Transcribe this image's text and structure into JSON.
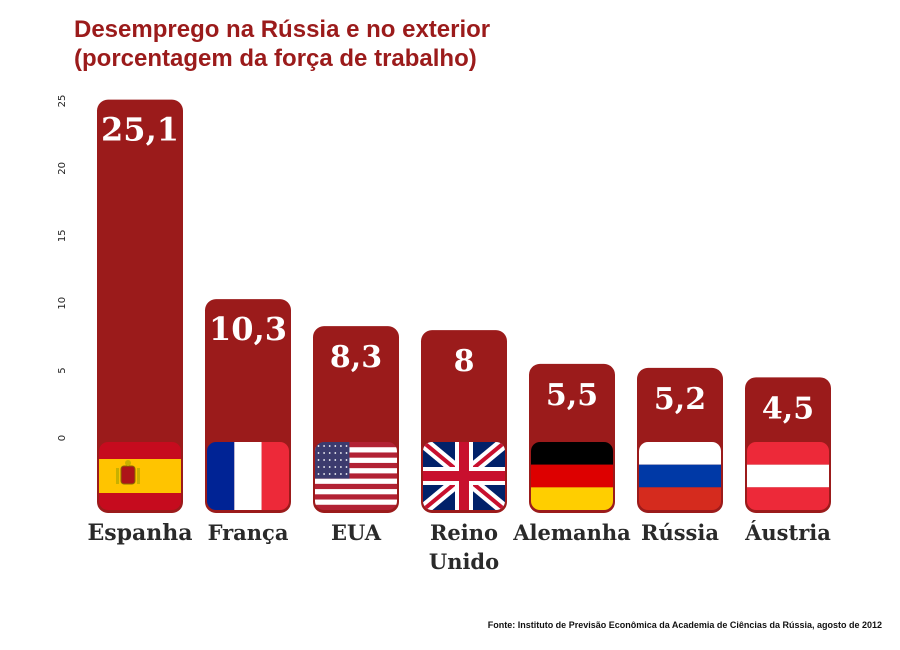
{
  "chart_data": {
    "type": "bar",
    "title_lines": [
      "Desemprego na Rússia e no exterior",
      "(porcentagem da força de trabalho)"
    ],
    "categories": [
      {
        "id": "espanha",
        "label_lines": [
          "Espanha"
        ],
        "flag": "spain-flag"
      },
      {
        "id": "franca",
        "label_lines": [
          "França"
        ],
        "flag": "france-flag"
      },
      {
        "id": "eua",
        "label_lines": [
          "EUA"
        ],
        "flag": "usa-flag"
      },
      {
        "id": "reino-unido",
        "label_lines": [
          "Reino",
          "Unido"
        ],
        "flag": "uk-flag"
      },
      {
        "id": "alemanha",
        "label_lines": [
          "Alemanha"
        ],
        "flag": "germany-flag"
      },
      {
        "id": "russia",
        "label_lines": [
          "Rússia"
        ],
        "flag": "russia-flag"
      },
      {
        "id": "austria",
        "label_lines": [
          "Áustria"
        ],
        "flag": "austria-flag"
      }
    ],
    "values": [
      25.1,
      10.3,
      8.3,
      8,
      5.5,
      5.2,
      4.5
    ],
    "value_labels": [
      "25,1",
      "10,3",
      "8,3",
      "8",
      "5,5",
      "5,2",
      "4,5"
    ],
    "ylim": [
      0,
      25
    ],
    "yticks": [
      "0",
      "5",
      "10",
      "15",
      "20",
      "25"
    ],
    "grid": true,
    "bar_color": "#9b1b1b",
    "source": "Fonte: Instituto de Previsão Econômica da Academia de Ciências da Rússia, agosto de 2012"
  }
}
